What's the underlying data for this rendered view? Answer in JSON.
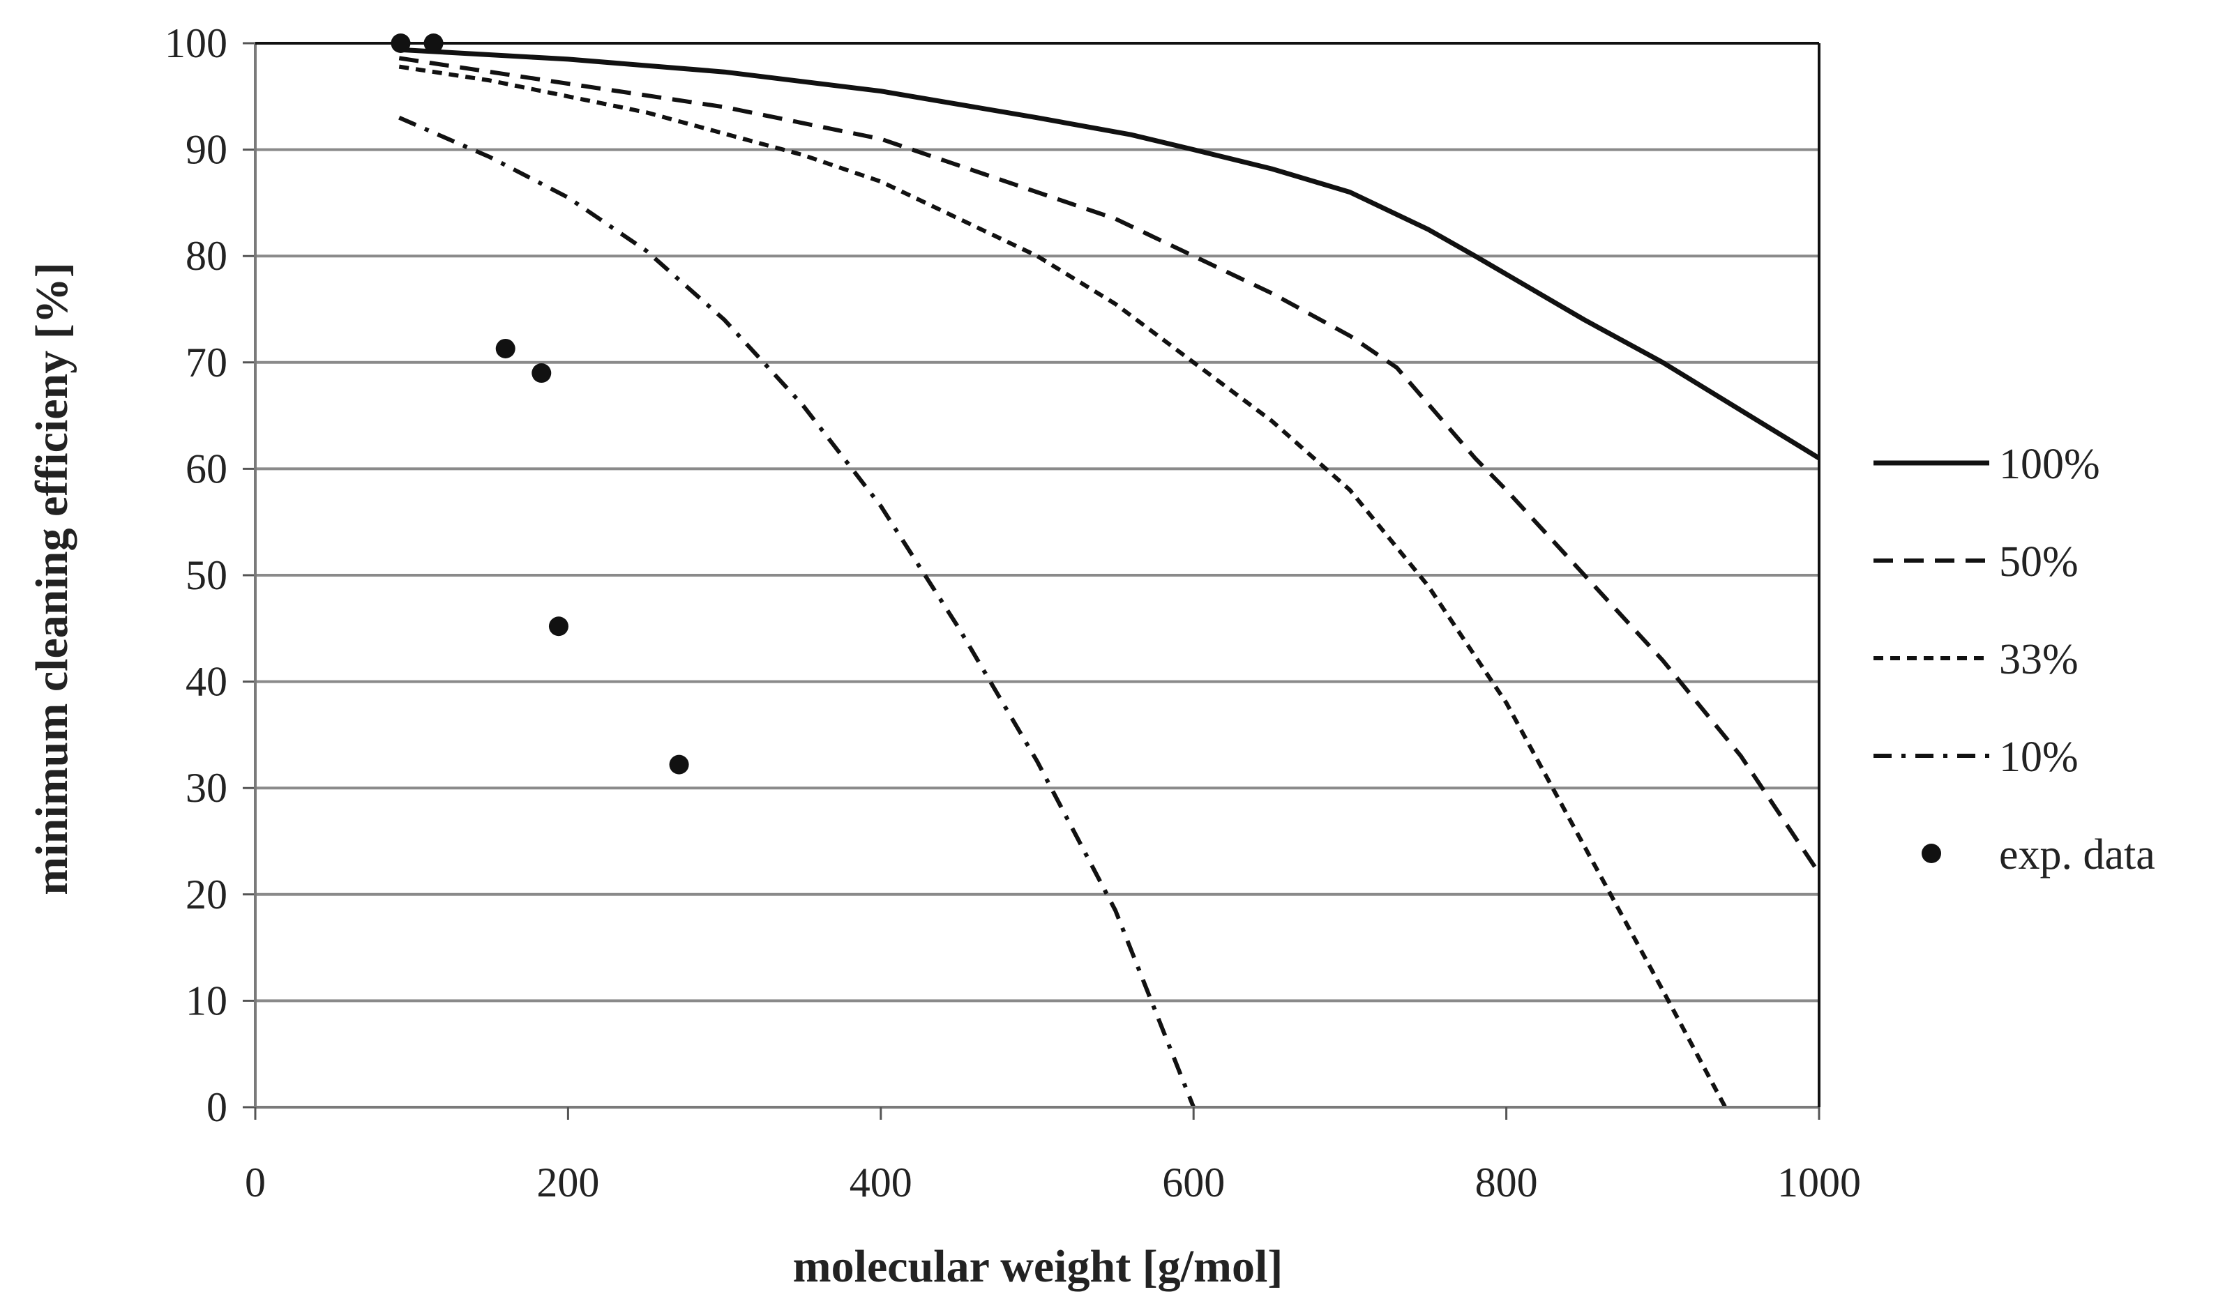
{
  "chart_data": {
    "type": "line",
    "title": "",
    "xlabel": "molecular weight [g/mol]",
    "ylabel": "minimum cleaning efficieny [%]",
    "xlim": [
      0,
      1000
    ],
    "ylim": [
      0,
      100
    ],
    "x_ticks": [
      0,
      200,
      400,
      600,
      800,
      1000
    ],
    "y_ticks": [
      0,
      10,
      20,
      30,
      40,
      50,
      60,
      70,
      80,
      90,
      100
    ],
    "grid": "horizontal",
    "legend_position": "right",
    "series": [
      {
        "name": "100%",
        "style": "solid",
        "points": [
          [
            92,
            99.4
          ],
          [
            200,
            98.5
          ],
          [
            300,
            97.3
          ],
          [
            400,
            95.5
          ],
          [
            500,
            93
          ],
          [
            560,
            91.4
          ],
          [
            600,
            90
          ],
          [
            650,
            88.2
          ],
          [
            700,
            86
          ],
          [
            750,
            82.5
          ],
          [
            780,
            80
          ],
          [
            850,
            74
          ],
          [
            900,
            70
          ],
          [
            950,
            65.5
          ],
          [
            1000,
            61
          ]
        ]
      },
      {
        "name": "50%",
        "style": "dashed",
        "points": [
          [
            92,
            98.6
          ],
          [
            200,
            96.2
          ],
          [
            300,
            94
          ],
          [
            400,
            91
          ],
          [
            500,
            86
          ],
          [
            550,
            83.5
          ],
          [
            600,
            80
          ],
          [
            650,
            76.5
          ],
          [
            700,
            72.5
          ],
          [
            730,
            69.5
          ],
          [
            780,
            61
          ],
          [
            800,
            58
          ],
          [
            850,
            50
          ],
          [
            900,
            42
          ],
          [
            950,
            33
          ],
          [
            1000,
            22
          ]
        ]
      },
      {
        "name": "33%",
        "style": "dotted-dash",
        "points": [
          [
            92,
            97.8
          ],
          [
            150,
            96.5
          ],
          [
            200,
            95
          ],
          [
            250,
            93.5
          ],
          [
            300,
            91.5
          ],
          [
            350,
            89.5
          ],
          [
            400,
            87
          ],
          [
            450,
            83.5
          ],
          [
            500,
            80
          ],
          [
            550,
            75.5
          ],
          [
            600,
            70
          ],
          [
            650,
            64.5
          ],
          [
            700,
            58
          ],
          [
            750,
            49
          ],
          [
            800,
            38
          ],
          [
            850,
            24.5
          ],
          [
            900,
            11
          ],
          [
            940,
            0
          ]
        ]
      },
      {
        "name": "10%",
        "style": "dash-dot",
        "points": [
          [
            92,
            93
          ],
          [
            150,
            89.3
          ],
          [
            200,
            85.5
          ],
          [
            250,
            80.5
          ],
          [
            300,
            74
          ],
          [
            350,
            66
          ],
          [
            400,
            56.5
          ],
          [
            450,
            45
          ],
          [
            500,
            32.5
          ],
          [
            550,
            18.5
          ],
          [
            600,
            0
          ]
        ]
      },
      {
        "name": "exp. data",
        "style": "markers",
        "points": [
          [
            93,
            100
          ],
          [
            114,
            100
          ],
          [
            160,
            71.3
          ],
          [
            183,
            69
          ],
          [
            194,
            45.2
          ],
          [
            271,
            32.2
          ]
        ]
      }
    ]
  }
}
